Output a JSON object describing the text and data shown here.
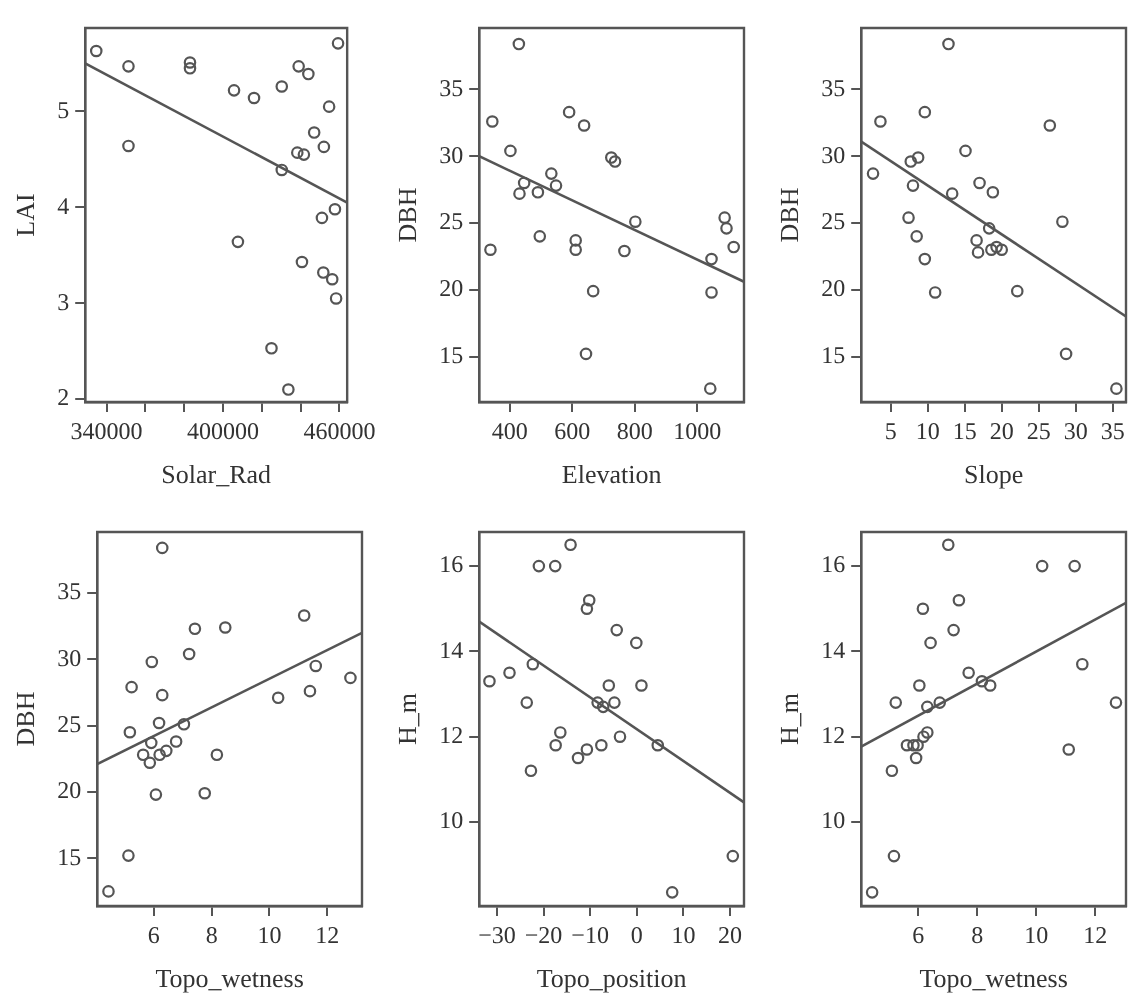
{
  "chart_data": [
    {
      "type": "scatter",
      "xlabel": "Solar_Rad",
      "ylabel": "LAI",
      "xlim": [
        329000,
        464000
      ],
      "ylim": [
        1.97,
        5.87
      ],
      "xticks": [
        340000,
        {
          "value": 360000,
          "label": null
        },
        {
          "value": 380000,
          "label": null
        },
        400000,
        {
          "value": 420000,
          "label": null
        },
        {
          "value": 440000,
          "label": null
        },
        460000
      ],
      "yticks": [
        2,
        3,
        4,
        5
      ],
      "series": [
        {
          "type": "scatter",
          "marker": "circle",
          "color": "#555555",
          "x": [
            334700,
            351300,
            351300,
            383000,
            383000,
            405700,
            416000,
            430300,
            430300,
            439000,
            444000,
            438300,
            441700,
            447000,
            454700,
            452000,
            459300,
            457700,
            451000,
            407700,
            440700,
            451700,
            456300,
            458300,
            425000,
            433700
          ],
          "values": [
            5.63,
            5.47,
            4.64,
            5.51,
            5.45,
            5.22,
            5.14,
            5.26,
            4.39,
            5.47,
            5.39,
            4.57,
            4.55,
            4.78,
            5.05,
            4.63,
            5.71,
            3.98,
            3.89,
            3.64,
            3.43,
            3.32,
            3.25,
            3.05,
            2.53,
            2.1
          ]
        },
        {
          "type": "line",
          "color": "#555555",
          "x": [
            329000,
            464000
          ],
          "values": [
            5.5,
            4.05
          ]
        }
      ]
    },
    {
      "type": "scatter",
      "xlabel": "Elevation",
      "ylabel": "DBH",
      "xlim": [
        302,
        1150
      ],
      "ylim": [
        11.6,
        39.6
      ],
      "xticks": [
        400,
        600,
        800,
        1000
      ],
      "yticks": [
        15,
        20,
        25,
        30,
        35
      ],
      "series": [
        {
          "type": "scatter",
          "marker": "circle",
          "color": "#555555",
          "x": [
            429,
            344,
            402,
            338,
            446,
            431,
            490,
            533,
            548,
            496,
            590,
            638,
            611,
            611,
            667,
            644,
            725,
            737,
            802,
            767,
            1046,
            1046,
            1042,
            1088,
            1094,
            1117
          ],
          "values": [
            38.4,
            32.6,
            30.4,
            23,
            28,
            27.2,
            27.3,
            28.7,
            27.8,
            24,
            33.3,
            32.3,
            23.7,
            23,
            19.9,
            15.2,
            29.9,
            29.6,
            25.1,
            22.9,
            22.3,
            19.8,
            12.6,
            25.4,
            24.6,
            23.2
          ]
        },
        {
          "type": "line",
          "color": "#555555",
          "x": [
            302,
            1150
          ],
          "values": [
            30,
            20.6
          ]
        }
      ]
    },
    {
      "type": "scatter",
      "xlabel": "Slope",
      "ylabel": "DBH",
      "xlim": [
        1,
        36.8
      ],
      "ylim": [
        11.6,
        39.6
      ],
      "xticks": [
        5,
        10,
        15,
        20,
        25,
        30,
        35
      ],
      "yticks": [
        15,
        20,
        25,
        30,
        35
      ],
      "series": [
        {
          "type": "scatter",
          "marker": "circle",
          "color": "#555555",
          "x": [
            2.6,
            3.6,
            12.8,
            9.6,
            7.7,
            8.7,
            8,
            7.4,
            8.5,
            9.6,
            11,
            13.3,
            15.1,
            17,
            18.8,
            16.6,
            16.8,
            18.3,
            18.6,
            19.3,
            20,
            22.1,
            26.5,
            28.2,
            28.7,
            35.5
          ],
          "values": [
            28.7,
            32.6,
            38.4,
            33.3,
            29.6,
            29.9,
            27.8,
            25.4,
            24,
            22.3,
            19.8,
            27.2,
            30.4,
            28,
            27.3,
            23.7,
            22.8,
            24.6,
            23,
            23.2,
            23,
            19.9,
            32.3,
            25.1,
            15.2,
            12.6
          ]
        },
        {
          "type": "line",
          "color": "#555555",
          "x": [
            1,
            36.8
          ],
          "values": [
            31.1,
            18
          ]
        }
      ]
    },
    {
      "type": "scatter",
      "xlabel": "Topo_wetness",
      "ylabel": "DBH",
      "xlim": [
        4.04,
        13.2
      ],
      "ylim": [
        11.4,
        39.6
      ],
      "xticks": [
        6,
        8,
        10,
        12
      ],
      "yticks": [
        15,
        20,
        25,
        30,
        35
      ],
      "series": [
        {
          "type": "scatter",
          "marker": "circle",
          "color": "#555555",
          "x": [
            4.43,
            5.12,
            5.17,
            5.23,
            5.63,
            5.86,
            5.91,
            5.93,
            6.07,
            6.18,
            6.29,
            6.29,
            6.2,
            6.43,
            6.77,
            7.04,
            7.22,
            7.42,
            7.76,
            8.18,
            8.47,
            10.3,
            11.2,
            11.4,
            11.6,
            12.8
          ],
          "values": [
            12.5,
            15.2,
            24.5,
            27.9,
            22.8,
            22.2,
            23.7,
            29.8,
            19.8,
            25.2,
            38.4,
            27.3,
            22.8,
            23.1,
            23.8,
            25.1,
            30.4,
            32.3,
            19.9,
            22.8,
            32.4,
            27.1,
            33.3,
            27.6,
            29.5,
            28.6
          ]
        },
        {
          "type": "line",
          "color": "#555555",
          "x": [
            4.04,
            13.2
          ],
          "values": [
            22.1,
            32
          ]
        }
      ]
    },
    {
      "type": "scatter",
      "xlabel": "Topo_position",
      "ylabel": "H_m",
      "xlim": [
        -33.8,
        23
      ],
      "ylim": [
        8.03,
        16.8
      ],
      "xticks": [
        {
          "value": -30,
          "label": "−30"
        },
        {
          "value": -20,
          "label": "−20"
        },
        {
          "value": -10,
          "label": "−10"
        },
        0,
        10,
        20
      ],
      "yticks": [
        10,
        12,
        14,
        16
      ],
      "series": [
        {
          "type": "scatter",
          "marker": "circle",
          "color": "#555555",
          "x": [
            -31.6,
            -27.3,
            -23.6,
            -22.3,
            -22.7,
            -21,
            -17.5,
            -14.2,
            -17.4,
            -16.4,
            -12.6,
            -10.7,
            -10.7,
            -10.2,
            -8.4,
            -7.2,
            -7.6,
            -6,
            -4.8,
            -4.3,
            -3.6,
            -0.1,
            1,
            4.5,
            7.6,
            20.6
          ],
          "values": [
            13.3,
            13.5,
            12.8,
            13.7,
            11.2,
            16,
            16,
            16.5,
            11.8,
            12.1,
            11.5,
            11.7,
            15,
            15.2,
            12.8,
            12.7,
            11.8,
            13.2,
            12.8,
            14.5,
            12,
            14.2,
            13.2,
            11.8,
            8.35,
            9.2
          ]
        },
        {
          "type": "line",
          "color": "#555555",
          "x": [
            -33.8,
            23
          ],
          "values": [
            14.7,
            10.46
          ]
        }
      ]
    },
    {
      "type": "scatter",
      "xlabel": "Topo_wetness",
      "ylabel": "H_m",
      "xlim": [
        4.07,
        13.04
      ],
      "ylim": [
        8.03,
        16.8
      ],
      "xticks": [
        6,
        8,
        10,
        12
      ],
      "yticks": [
        10,
        12,
        14,
        16
      ],
      "series": [
        {
          "type": "scatter",
          "marker": "circle",
          "color": "#555555",
          "x": [
            4.44,
            5.11,
            5.18,
            5.24,
            5.62,
            5.84,
            5.93,
            5.98,
            6.04,
            6.16,
            6.18,
            6.31,
            6.31,
            6.42,
            6.73,
            7.02,
            7.2,
            7.38,
            7.71,
            8.16,
            8.44,
            10.2,
            11.3,
            11.1,
            11.56,
            12.7
          ],
          "values": [
            8.35,
            11.2,
            9.2,
            12.8,
            11.8,
            11.8,
            11.5,
            11.8,
            13.2,
            15,
            12,
            12.7,
            12.1,
            14.2,
            12.8,
            16.5,
            14.5,
            15.2,
            13.5,
            13.3,
            13.2,
            16,
            16,
            11.7,
            13.7,
            12.8
          ]
        },
        {
          "type": "line",
          "color": "#555555",
          "x": [
            4.07,
            13.04
          ],
          "values": [
            11.77,
            15.14
          ]
        }
      ]
    }
  ]
}
